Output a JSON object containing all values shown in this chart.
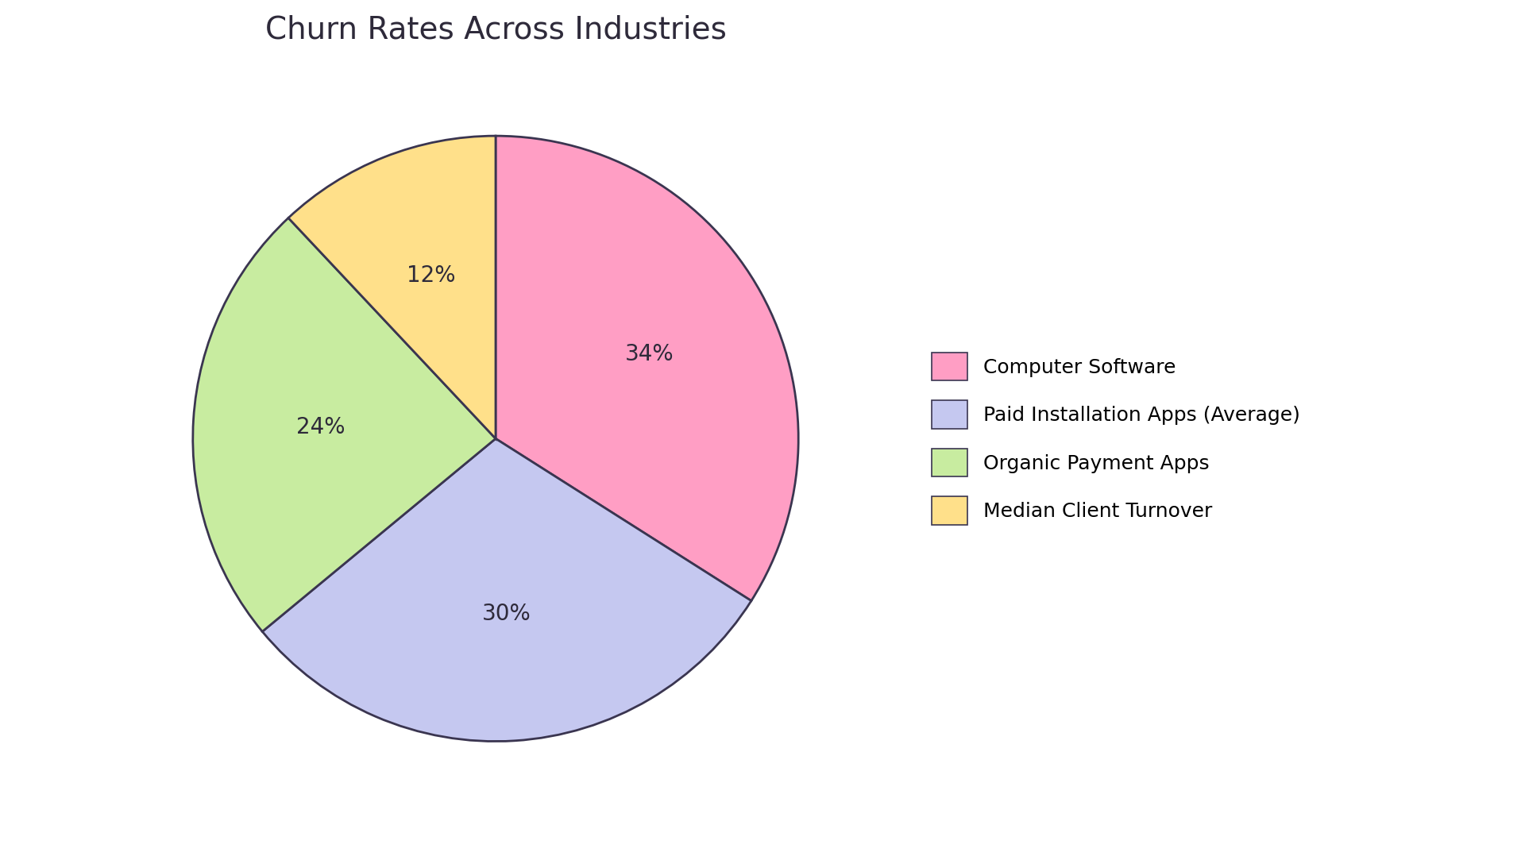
{
  "title": "Churn Rates Across Industries",
  "slices": [
    34,
    30,
    24,
    12
  ],
  "labels": [
    "Computer Software",
    "Paid Installation Apps (Average)",
    "Organic Payment Apps",
    "Median Client Turnover"
  ],
  "colors": [
    "#FF9EC4",
    "#C5C8F0",
    "#C8ECA0",
    "#FFE08A"
  ],
  "edge_color": "#3A3550",
  "edge_width": 2.0,
  "pct_labels": [
    "34%",
    "30%",
    "24%",
    "12%"
  ],
  "background_color": "#FFFFFF",
  "title_fontsize": 28,
  "pct_fontsize": 20,
  "legend_fontsize": 18,
  "startangle": 90
}
